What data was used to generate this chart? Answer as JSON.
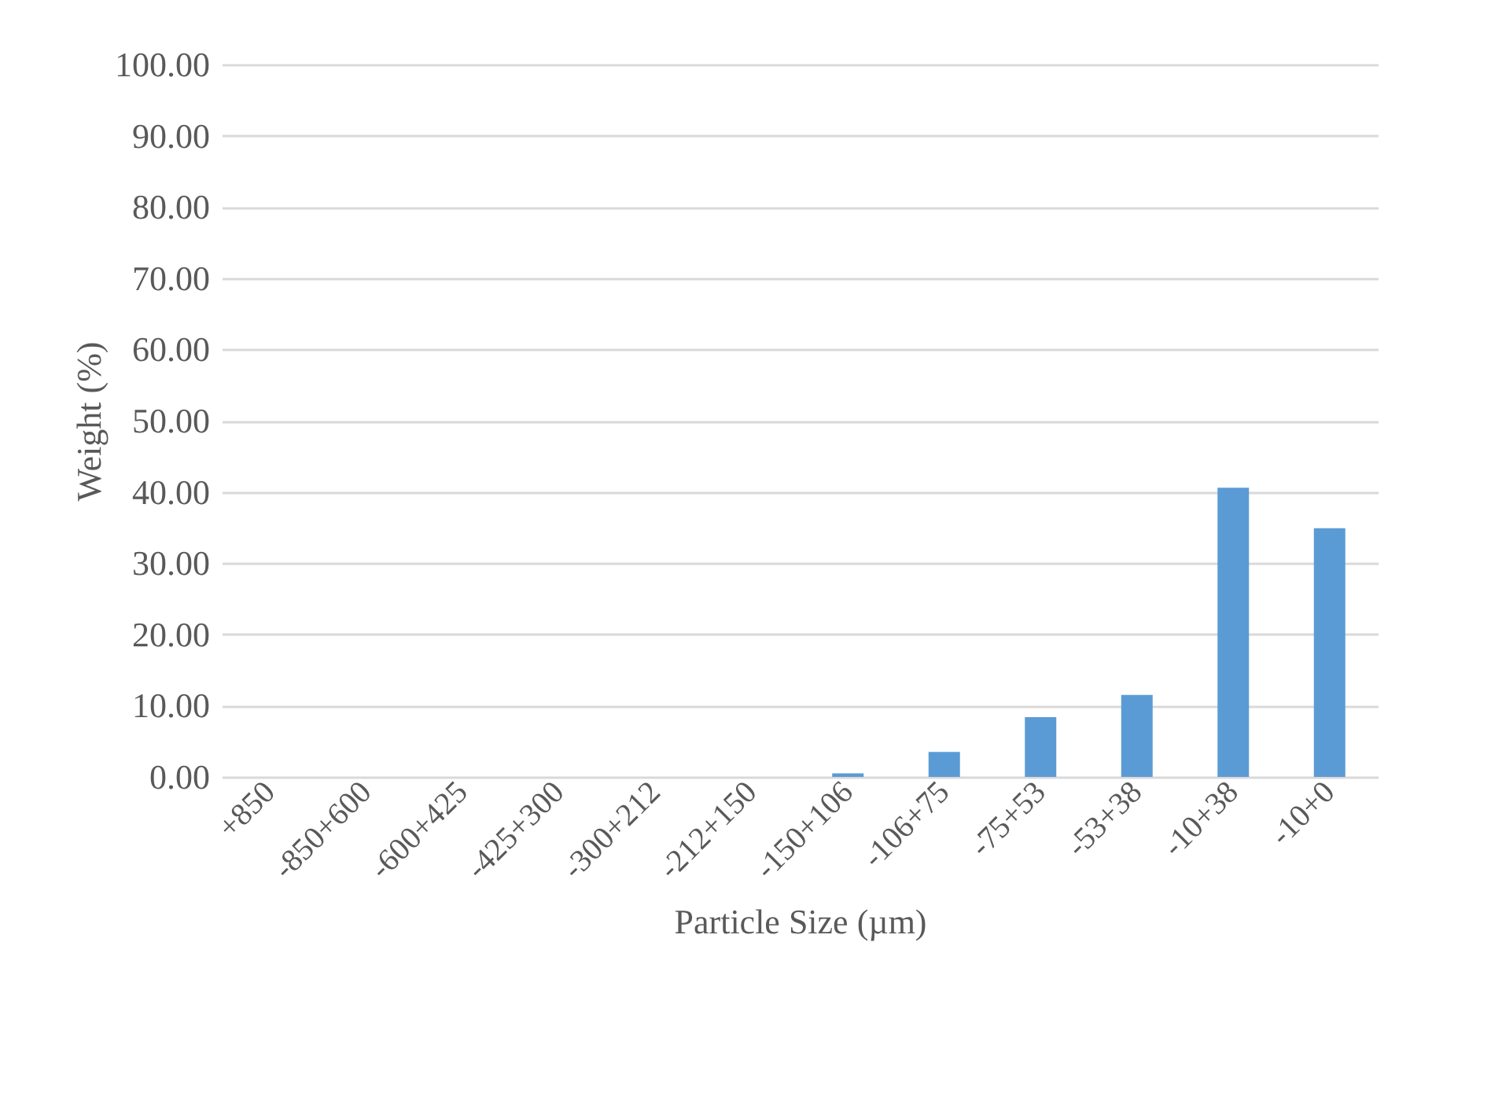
{
  "chart_data": {
    "type": "bar",
    "xlabel": "Particle Size (µm)",
    "ylabel": "Weight (%)",
    "categories": [
      "+850",
      "-850+600",
      "-600+425",
      "-425+300",
      "-300+212",
      "-212+150",
      "-150+106",
      "-106+75",
      "-75+53",
      "-53+38",
      "-10+38",
      "-10+0"
    ],
    "values": [
      0,
      0,
      0,
      0,
      0,
      0,
      0.5,
      3.5,
      8.4,
      11.5,
      40.6,
      34.9
    ],
    "color": "#5b9bd5",
    "ylim": [
      0,
      100
    ],
    "yticks": [
      {
        "value": 0,
        "label": "0.00"
      },
      {
        "value": 10,
        "label": "10.00"
      },
      {
        "value": 20,
        "label": "20.00"
      },
      {
        "value": 30,
        "label": "30.00"
      },
      {
        "value": 40,
        "label": "40.00"
      },
      {
        "value": 50,
        "label": "50.00"
      },
      {
        "value": 60,
        "label": "60.00"
      },
      {
        "value": 70,
        "label": "70.00"
      },
      {
        "value": 80,
        "label": "80.00"
      },
      {
        "value": 90,
        "label": "90.00"
      },
      {
        "value": 100,
        "label": "100.00"
      }
    ],
    "grid": "y"
  }
}
